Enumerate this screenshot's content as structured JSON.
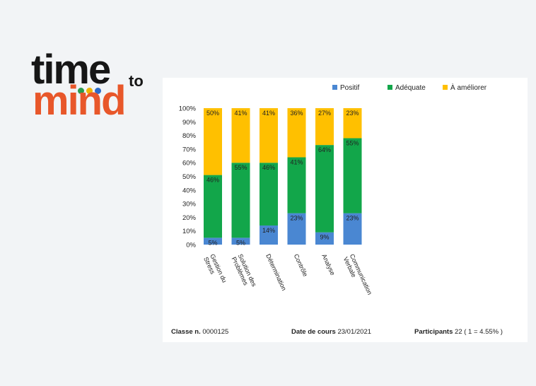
{
  "logo": {
    "time": "time",
    "to": "to",
    "mind": "mind",
    "dot_colors": [
      "#2a9d4b",
      "#f0b400",
      "#2d6cc8"
    ]
  },
  "chart_data": {
    "type": "bar",
    "stacked": true,
    "categories": [
      "Gestion du Stress",
      "Solution des Problèmes",
      "Détermination",
      "Contrôle",
      "Analyse",
      "Communication Verbale"
    ],
    "series": [
      {
        "name": "Positif",
        "color": "#4a87d2",
        "values": [
          5,
          5,
          14,
          23,
          9,
          23
        ]
      },
      {
        "name": "Adéquate",
        "color": "#12a64a",
        "values": [
          46,
          55,
          46,
          41,
          64,
          55
        ]
      },
      {
        "name": "À améliorer",
        "color": "#ffc000",
        "values": [
          50,
          41,
          41,
          36,
          27,
          23
        ]
      }
    ],
    "y_ticks": [
      "0%",
      "10%",
      "20%",
      "30%",
      "40%",
      "50%",
      "60%",
      "70%",
      "80%",
      "90%",
      "100%"
    ],
    "ylim": [
      0,
      100
    ],
    "legend_position": "top-right"
  },
  "footer": {
    "class_label": "Classe n.",
    "class_value": "0000125",
    "date_label": "Date de cours",
    "date_value": "23/01/2021",
    "participants_label": "Participants",
    "participants_value": "22 ( 1 = 4.55% )"
  }
}
